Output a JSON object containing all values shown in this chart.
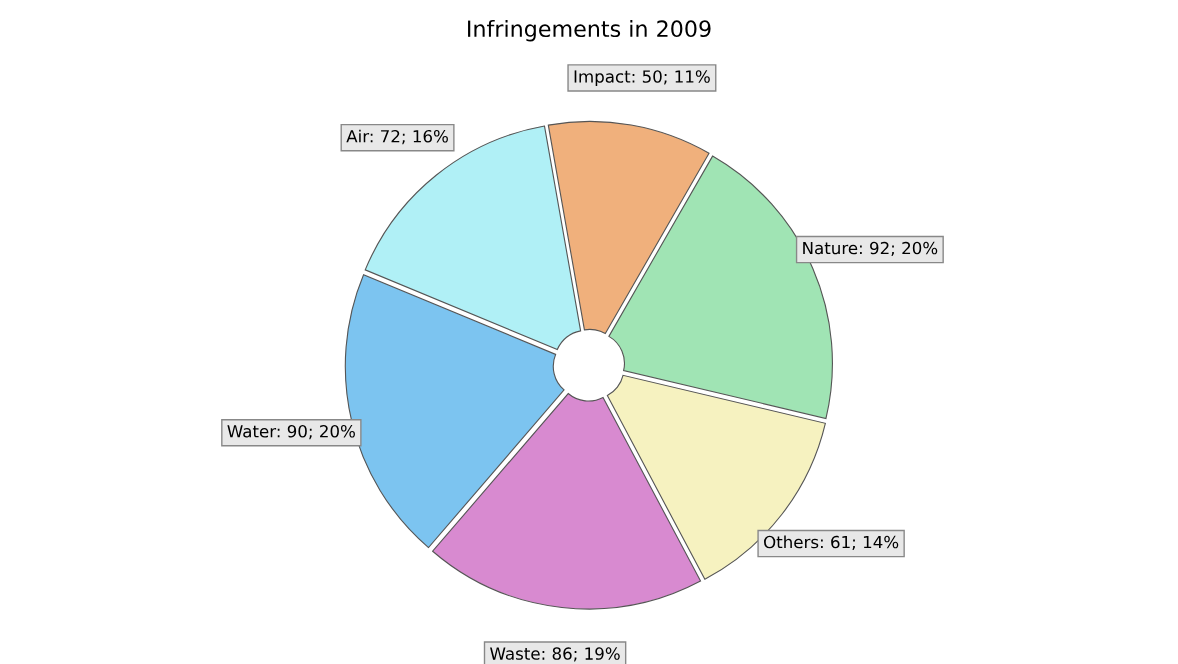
{
  "chart_data": {
    "type": "donut",
    "title": "Infringements in 2009",
    "categories": [
      "Impact",
      "Nature",
      "Others",
      "Waste",
      "Water",
      "Air"
    ],
    "values": [
      50,
      92,
      61,
      86,
      90,
      72
    ],
    "value_labels": [
      "50; 11%",
      "92; 20%",
      "61; 14%",
      "86; 19%",
      "90; 20%",
      "72; 16%"
    ],
    "colors": [
      "#f0b07c",
      "#a0e4b4",
      "#f6f2c0",
      "#d88ad0",
      "#7cc4f0",
      "#b0f0f6"
    ],
    "legend": false
  }
}
